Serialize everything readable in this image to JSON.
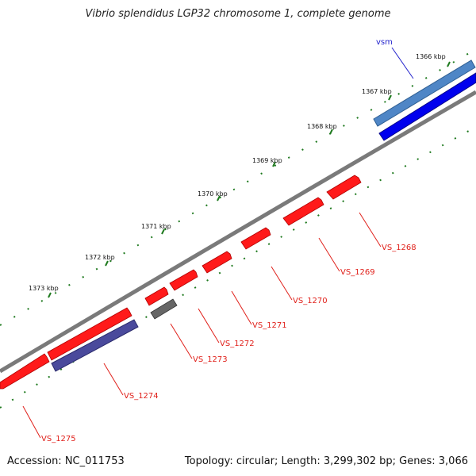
{
  "title": "Vibrio splendidus LGP32 chromosome 1, complete genome",
  "footer": {
    "accession": "Accession: NC_011753",
    "summary": "Topology: circular; Length: 3,299,302 bp; Genes: 3,066"
  },
  "colors": {
    "gene_red": "#ff1a1a",
    "gene_red_dark": "#c40000",
    "gene_gray": "#666666",
    "track_blue": "#0000ee",
    "track_lightblue": "#4f86c6",
    "track_purple": "#4a4a9c",
    "backbone": "#7a7a7a",
    "tick_green": "#1f7a1f",
    "label_red": "#e0201a",
    "label_blue": "#2222cc"
  },
  "kbp_ticks": [
    "1366 kbp",
    "1367 kbp",
    "1368 kbp",
    "1369 kbp",
    "1370 kbp",
    "1371 kbp",
    "1372 kbp",
    "1373 kbp"
  ],
  "feature_labels": {
    "vsm": "vsm",
    "VS_1268": "VS_1268",
    "VS_1269": "VS_1269",
    "VS_1270": "VS_1270",
    "VS_1271": "VS_1271",
    "VS_1272": "VS_1272",
    "VS_1273": "VS_1273",
    "VS_1274": "VS_1274",
    "VS_1275": "VS_1275"
  }
}
